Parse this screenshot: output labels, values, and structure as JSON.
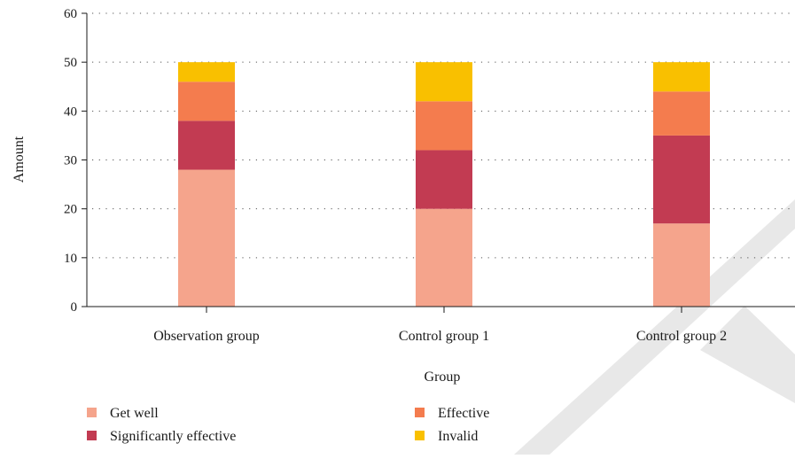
{
  "chart_data": {
    "type": "bar",
    "stacked": true,
    "title": "",
    "xlabel": "Group",
    "ylabel": "Amount",
    "ylim": [
      0,
      60
    ],
    "yticks": [
      0,
      10,
      20,
      30,
      40,
      50,
      60
    ],
    "grid": "horizontal dotted",
    "legend_position": "bottom-left",
    "categories": [
      "Observation group",
      "Control group 1",
      "Control group 2"
    ],
    "series": [
      {
        "name": "Get well",
        "color": "#f5a48c",
        "values": [
          28,
          20,
          17
        ]
      },
      {
        "name": "Significantly effective",
        "color": "#c23b52",
        "values": [
          10,
          12,
          18
        ]
      },
      {
        "name": "Effective",
        "color": "#f47c4e",
        "values": [
          8,
          10,
          9
        ]
      },
      {
        "name": "Invalid",
        "color": "#f9c000",
        "values": [
          4,
          8,
          6
        ]
      }
    ]
  }
}
